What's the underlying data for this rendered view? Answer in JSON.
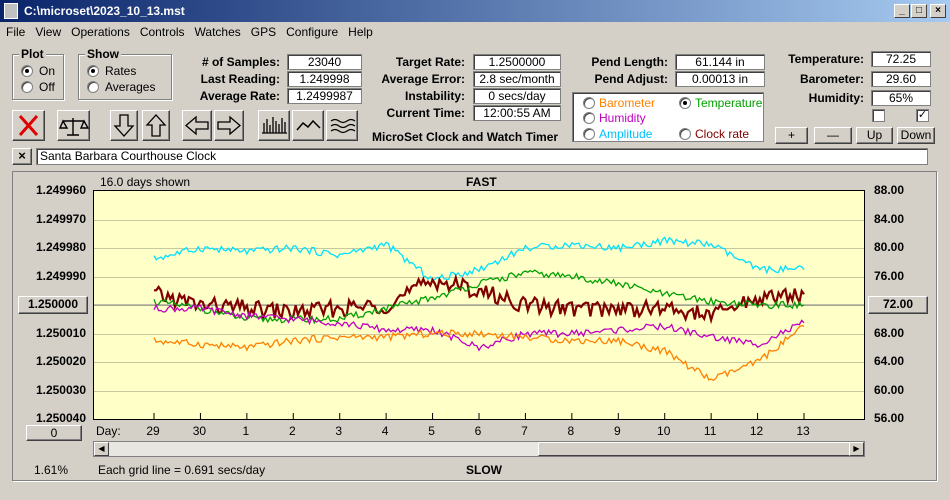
{
  "window": {
    "title": "C:\\microset\\2023_10_13.mst"
  },
  "menu": [
    "File",
    "View",
    "Operations",
    "Controls",
    "Watches",
    "GPS",
    "Configure",
    "Help"
  ],
  "plot_group": {
    "label": "Plot",
    "options": [
      {
        "label": "On",
        "selected": true
      },
      {
        "label": "Off",
        "selected": false
      }
    ]
  },
  "show_group": {
    "label": "Show",
    "options": [
      {
        "label": "Rates",
        "selected": true
      },
      {
        "label": "Averages",
        "selected": false
      }
    ]
  },
  "stats": {
    "samples_label": "# of Samples:",
    "samples": "23040",
    "last_reading_label": "Last Reading:",
    "last_reading": "1.249998",
    "average_rate_label": "Average Rate:",
    "average_rate": "1.2499987"
  },
  "rates": {
    "target_rate_label": "Target Rate:",
    "target_rate": "1.2500000",
    "average_error_label": "Average Error:",
    "average_error": "2.8 sec/month",
    "instability_label": "Instability:",
    "instability": "0 secs/day",
    "current_time_label": "Current Time:",
    "current_time": "12:00:55 AM"
  },
  "app_caption": "MicroSet Clock and Watch Timer",
  "pendulum": {
    "length_label": "Pend Length:",
    "length": "61.144 in",
    "adjust_label": "Pend Adjust:",
    "adjust": "0.00013 in"
  },
  "sensors": {
    "temperature_label": "Temperature:",
    "temperature": "72.25",
    "barometer_label": "Barometer:",
    "barometer": "29.60",
    "humidity_label": "Humidity:",
    "humidity": "65%"
  },
  "overlay_options": [
    {
      "label": "Barometer",
      "color": "#ff8000",
      "selected": false
    },
    {
      "label": "Temperature",
      "color": "#00a000",
      "selected": true
    },
    {
      "label": "Humidity",
      "color": "#c000c0",
      "selected": false
    },
    {
      "label": "Clock rate",
      "color": "#800000",
      "selected": false
    },
    {
      "label": "Amplitude",
      "color": "#00c0ff",
      "selected": false
    }
  ],
  "scale_buttons": {
    "plus": "+",
    "minus": "—",
    "up": "Up",
    "down": "Down"
  },
  "checkboxes": [
    {
      "checked": false
    },
    {
      "checked": true
    }
  ],
  "toolbar_icons": [
    "clear-x-icon",
    "balance-scale-icon",
    "arrow-down-icon",
    "arrow-up-icon",
    "arrow-left-icon",
    "arrow-right-icon",
    "bar-chart-icon",
    "line-wave-icon",
    "multi-wave-icon"
  ],
  "clock_name": "Santa Barbara Courthouse Clock",
  "chart_header": {
    "days_shown": "16.0 days shown",
    "fast": "FAST",
    "slow": "SLOW",
    "grid_note": "Each grid line = 0.691 secs/day",
    "zoom": "1.61%",
    "center_rate": "1.250000",
    "right_center": "72.00",
    "day_prefix": "Day:",
    "offset_button": "0"
  },
  "chart_data": {
    "type": "line",
    "x_label": "Day",
    "x": [
      "29",
      "30",
      "1",
      "2",
      "3",
      "4",
      "5",
      "6",
      "7",
      "8",
      "9",
      "10",
      "11",
      "12",
      "13"
    ],
    "y_left_ticks": [
      "1.249960",
      "1.249970",
      "1.249980",
      "1.249990",
      "1.250000",
      "1.250010",
      "1.250020",
      "1.250030",
      "1.250040"
    ],
    "y_right_ticks": [
      "88.00",
      "84.00",
      "80.00",
      "76.00",
      "72.00",
      "68.00",
      "64.00",
      "60.00",
      "56.00"
    ],
    "left_range": [
      1.25004,
      1.24996
    ],
    "right_range": [
      56,
      88
    ],
    "series": [
      {
        "name": "Amplitude",
        "color": "#00e0ff",
        "values": [
          78.5,
          80.0,
          79.5,
          80.0,
          79.0,
          80.5,
          75.5,
          77.0,
          80.0,
          80.5,
          80.0,
          81.0,
          80.5,
          77.0,
          77.0
        ]
      },
      {
        "name": "Clock rate",
        "color": "#800000",
        "values": [
          73.5,
          72.0,
          71.5,
          71.0,
          71.5,
          72.0,
          75.5,
          74.0,
          72.0,
          71.5,
          71.5,
          71.5,
          70.5,
          73.0,
          73.5
        ]
      },
      {
        "name": "Temperature",
        "color": "#00a000",
        "values": [
          72.5,
          71.5,
          70.0,
          70.0,
          70.0,
          71.5,
          73.0,
          75.0,
          76.5,
          76.0,
          75.0,
          73.5,
          72.5,
          72.0,
          72.0
        ]
      },
      {
        "name": "Humidity",
        "color": "#c000c0",
        "values": [
          71.5,
          71.5,
          70.5,
          70.0,
          69.5,
          68.5,
          68.5,
          66.0,
          68.0,
          68.0,
          68.5,
          69.0,
          67.5,
          66.5,
          69.5
        ]
      },
      {
        "name": "Barometer",
        "color": "#ff8000",
        "values": [
          67.0,
          66.5,
          66.0,
          67.0,
          67.5,
          67.5,
          68.0,
          68.0,
          67.5,
          67.0,
          67.0,
          65.5,
          61.5,
          64.0,
          69.0
        ]
      }
    ]
  }
}
